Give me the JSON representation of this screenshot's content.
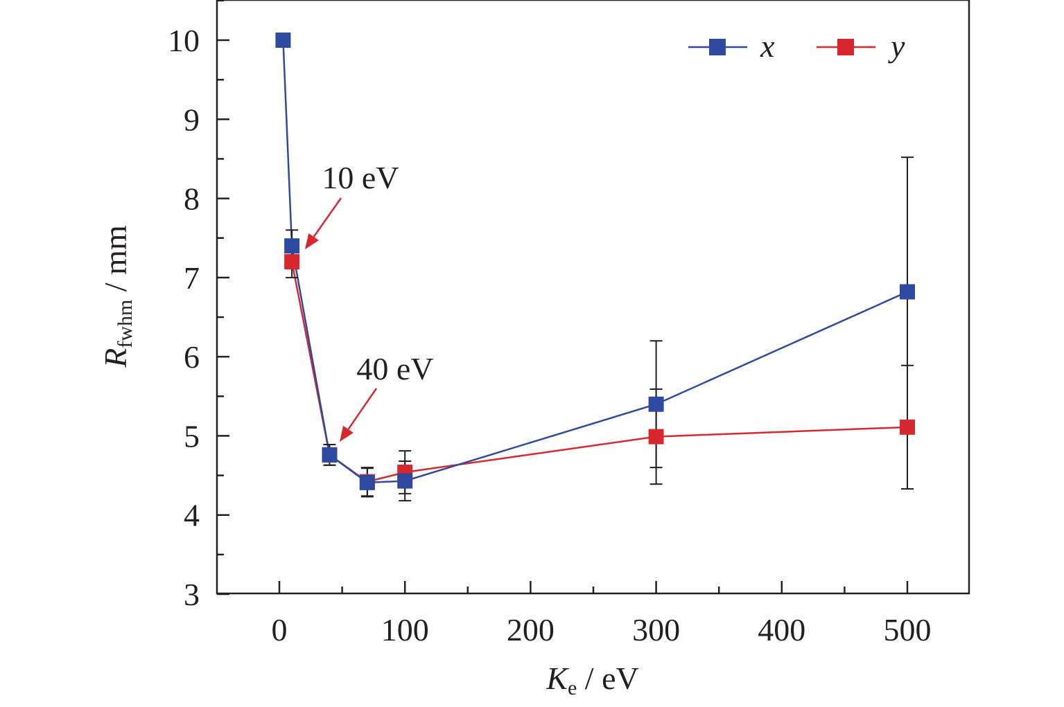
{
  "chart_data": {
    "type": "line",
    "x": [
      3,
      10,
      40,
      70,
      100,
      300,
      500
    ],
    "series": [
      {
        "name": "x",
        "color": "#2e4aa0",
        "values": [
          10.0,
          7.4,
          4.76,
          4.41,
          4.43,
          5.4,
          6.82
        ],
        "error": [
          0,
          0.2,
          0.13,
          0.18,
          0.25,
          0.8,
          1.7
        ]
      },
      {
        "name": "y",
        "color": "#d7282f",
        "values": [
          null,
          7.2,
          4.76,
          4.42,
          4.54,
          4.99,
          5.11
        ],
        "error": [
          0,
          0.2,
          0.13,
          0.18,
          0.27,
          0.6,
          0.78
        ]
      }
    ],
    "xlabel": {
      "main": "K",
      "sub": "e",
      "unit": " / eV"
    },
    "ylabel": {
      "main": "R",
      "sub": "fwhm",
      "unit": " / mm"
    },
    "xlim": [
      -50,
      550
    ],
    "ylim": [
      3,
      10.5
    ],
    "xticks": [
      0,
      100,
      200,
      300,
      400,
      500
    ],
    "yticks": [
      3,
      4,
      5,
      6,
      7,
      8,
      9,
      10
    ],
    "grid": false,
    "legend_position": "top-right",
    "annotations": [
      {
        "text": "10 eV",
        "target_x": 10,
        "target_y": 7.3,
        "color": "#d7282f"
      },
      {
        "text": "40 eV",
        "target_x": 40,
        "target_y": 4.85,
        "color": "#d7282f"
      }
    ]
  }
}
